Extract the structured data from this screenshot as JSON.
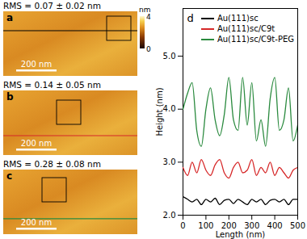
{
  "images": [
    {
      "label": "a",
      "rms": "RMS = 0.07 ± 0.02 nm",
      "scale_bar": "200 nm",
      "line_color": "#000000"
    },
    {
      "label": "b",
      "rms": "RMS = 0.14 ± 0.05 nm",
      "scale_bar": "200 nm",
      "line_color": "#d62728"
    },
    {
      "label": "c",
      "rms": "RMS = 0.28 ± 0.08 nm",
      "scale_bar": "200 nm",
      "line_color": "#2a8a3e"
    }
  ],
  "colorbar": {
    "label": "nm",
    "range": [
      0,
      4
    ],
    "ticks": [
      0,
      4
    ]
  },
  "chart_data": {
    "type": "line",
    "title": "d",
    "x_label": "Length (nm)",
    "y_label": "Height (nm)",
    "x": [
      0,
      20,
      40,
      60,
      80,
      100,
      120,
      140,
      160,
      180,
      200,
      220,
      240,
      260,
      280,
      300,
      320,
      340,
      360,
      380,
      400,
      420,
      440,
      460,
      480,
      500
    ],
    "series": [
      {
        "name": "Au(111)sc",
        "color": "#000000",
        "values": [
          2.35,
          2.3,
          2.25,
          2.3,
          2.2,
          2.3,
          2.25,
          2.32,
          2.2,
          2.28,
          2.3,
          2.22,
          2.3,
          2.25,
          2.2,
          2.3,
          2.25,
          2.3,
          2.2,
          2.28,
          2.3,
          2.25,
          2.3,
          2.2,
          2.3,
          2.3
        ]
      },
      {
        "name": "Au(111)sc/C9t",
        "color": "#d62728",
        "values": [
          2.9,
          2.75,
          3.0,
          2.8,
          3.05,
          2.85,
          2.75,
          2.95,
          3.05,
          2.8,
          2.7,
          2.9,
          3.0,
          2.8,
          2.85,
          3.05,
          2.75,
          2.9,
          2.8,
          3.0,
          2.75,
          2.9,
          2.8,
          2.7,
          2.85,
          2.9
        ]
      },
      {
        "name": "Au(111)sc/C9t-PEG",
        "color": "#2a8a3e",
        "values": [
          4.0,
          4.3,
          4.5,
          3.6,
          3.3,
          4.0,
          4.4,
          3.8,
          3.5,
          3.9,
          4.6,
          3.8,
          3.6,
          4.6,
          3.7,
          4.5,
          3.4,
          3.8,
          3.3,
          4.2,
          4.6,
          3.6,
          3.8,
          4.4,
          3.4,
          3.7
        ]
      }
    ],
    "xlim": [
      0,
      500
    ],
    "xticks": [
      0,
      100,
      200,
      300,
      400,
      500
    ],
    "ylim": [
      2,
      5.9
    ],
    "yticks": [
      2,
      3,
      4,
      5
    ],
    "legend": "top-right"
  }
}
